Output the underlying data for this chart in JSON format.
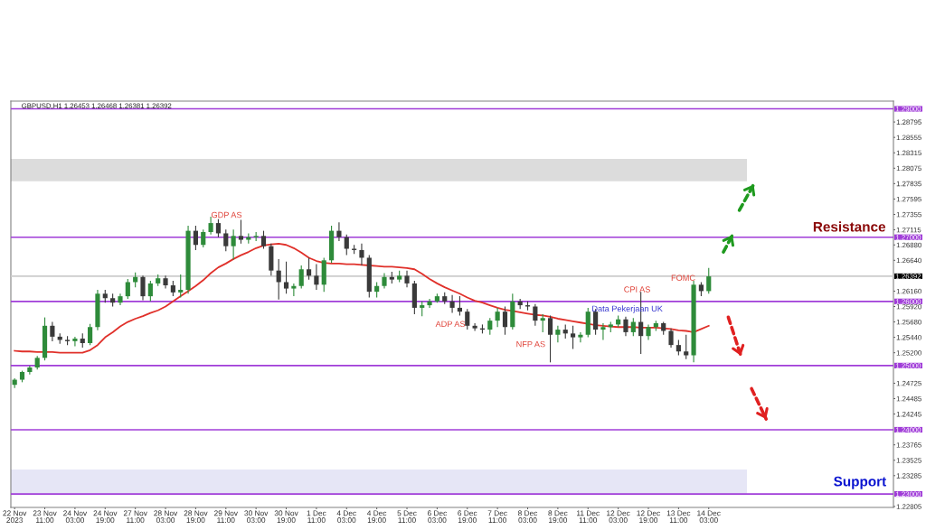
{
  "chart_data": {
    "type": "candlestick",
    "title": "GBPUSD,H1 1.26453 1.26468 1.26381 1.26392",
    "categories": [
      "22 Nov 2023",
      null,
      null,
      null,
      "23 Nov 11:00",
      null,
      null,
      null,
      "24 Nov 03:00",
      null,
      null,
      null,
      "24 Nov 19:00",
      null,
      null,
      null,
      "27 Nov 11:00",
      null,
      null,
      null,
      "28 Nov 03:00",
      null,
      null,
      null,
      "28 Nov 19:00",
      null,
      null,
      null,
      "29 Nov 11:00",
      null,
      null,
      null,
      "30 Nov 03:00",
      null,
      null,
      null,
      "30 Nov 19:00",
      null,
      null,
      null,
      "1 Dec 11:00",
      null,
      null,
      null,
      "4 Dec 03:00",
      null,
      null,
      null,
      "4 Dec 19:00",
      null,
      null,
      null,
      "5 Dec 11:00",
      null,
      null,
      null,
      "6 Dec 03:00",
      null,
      null,
      null,
      "6 Dec 19:00",
      null,
      null,
      null,
      "7 Dec 11:00",
      null,
      null,
      null,
      "8 Dec 03:00",
      null,
      null,
      null,
      "8 Dec 19:00",
      null,
      null,
      null,
      "11 Dec 11:00",
      null,
      null,
      null,
      "12 Dec 03:00",
      null,
      null,
      null,
      "12 Dec 19:00",
      null,
      null,
      null,
      "13 Dec 11:00",
      null,
      null,
      null,
      "14 Dec 03:00"
    ],
    "ohlc": [
      [
        1.247,
        1.248,
        1.2465,
        1.2478
      ],
      [
        1.2478,
        1.2492,
        1.2474,
        1.249
      ],
      [
        1.249,
        1.25,
        1.2486,
        1.2497
      ],
      [
        1.2497,
        1.2515,
        1.2494,
        1.2512
      ],
      [
        1.2512,
        1.2575,
        1.2508,
        1.2562
      ],
      [
        1.2562,
        1.2568,
        1.2538,
        1.2545
      ],
      [
        1.2545,
        1.255,
        1.2534,
        1.254
      ],
      [
        1.254,
        1.2546,
        1.2532,
        1.2538
      ],
      [
        1.2538,
        1.2545,
        1.253,
        1.2542
      ],
      [
        1.2542,
        1.255,
        1.2528,
        1.2535
      ],
      [
        1.2535,
        1.2565,
        1.2532,
        1.256
      ],
      [
        1.256,
        1.2618,
        1.2555,
        1.2612
      ],
      [
        1.2612,
        1.2618,
        1.2598,
        1.2605
      ],
      [
        1.2605,
        1.2612,
        1.2592,
        1.2598
      ],
      [
        1.2598,
        1.2612,
        1.2594,
        1.2608
      ],
      [
        1.2608,
        1.2635,
        1.2604,
        1.263
      ],
      [
        1.263,
        1.2645,
        1.2622,
        1.2638
      ],
      [
        1.2638,
        1.264,
        1.2602,
        1.2608
      ],
      [
        1.2608,
        1.2632,
        1.26,
        1.2628
      ],
      [
        1.2628,
        1.2642,
        1.2624,
        1.2636
      ],
      [
        1.2636,
        1.264,
        1.262,
        1.2625
      ],
      [
        1.2625,
        1.2632,
        1.2608,
        1.2614
      ],
      [
        1.2614,
        1.2642,
        1.2606,
        1.2618
      ],
      [
        1.2618,
        1.2718,
        1.2612,
        1.271
      ],
      [
        1.271,
        1.2718,
        1.268,
        1.2688
      ],
      [
        1.2688,
        1.2712,
        1.2684,
        1.2708
      ],
      [
        1.2708,
        1.2732,
        1.2704,
        1.2722
      ],
      [
        1.2722,
        1.2728,
        1.27,
        1.2706
      ],
      [
        1.2706,
        1.2712,
        1.2678,
        1.2686
      ],
      [
        1.2686,
        1.2712,
        1.2665,
        1.2702
      ],
      [
        1.2702,
        1.2727,
        1.269,
        1.2696
      ],
      [
        1.2696,
        1.2706,
        1.269,
        1.27
      ],
      [
        1.27,
        1.2708,
        1.2694,
        1.2702
      ],
      [
        1.2702,
        1.271,
        1.2682,
        1.2686
      ],
      [
        1.2686,
        1.269,
        1.264,
        1.2648
      ],
      [
        1.2648,
        1.2666,
        1.2603,
        1.263
      ],
      [
        1.263,
        1.2662,
        1.2612,
        1.262
      ],
      [
        1.262,
        1.2628,
        1.2608,
        1.2624
      ],
      [
        1.2624,
        1.2656,
        1.262,
        1.265
      ],
      [
        1.265,
        1.2668,
        1.2634,
        1.264
      ],
      [
        1.264,
        1.2658,
        1.2618,
        1.2626
      ],
      [
        1.2626,
        1.2668,
        1.2615,
        1.2664
      ],
      [
        1.2664,
        1.2718,
        1.266,
        1.271
      ],
      [
        1.271,
        1.2723,
        1.2694,
        1.27
      ],
      [
        1.27,
        1.2704,
        1.2672,
        1.2682
      ],
      [
        1.2682,
        1.2688,
        1.2674,
        1.268
      ],
      [
        1.268,
        1.269,
        1.2656,
        1.2668
      ],
      [
        1.2668,
        1.2672,
        1.2606,
        1.2615
      ],
      [
        1.2615,
        1.263,
        1.2606,
        1.2624
      ],
      [
        1.2624,
        1.2644,
        1.262,
        1.2638
      ],
      [
        1.2638,
        1.2646,
        1.2628,
        1.2634
      ],
      [
        1.2634,
        1.2648,
        1.263,
        1.264
      ],
      [
        1.264,
        1.2648,
        1.2622,
        1.2628
      ],
      [
        1.2628,
        1.2632,
        1.258,
        1.259
      ],
      [
        1.259,
        1.26,
        1.2577,
        1.2594
      ],
      [
        1.2594,
        1.2604,
        1.259,
        1.26
      ],
      [
        1.26,
        1.2612,
        1.2598,
        1.2608
      ],
      [
        1.2608,
        1.2614,
        1.2596,
        1.26
      ],
      [
        1.26,
        1.261,
        1.2582,
        1.259
      ],
      [
        1.259,
        1.2608,
        1.2578,
        1.2584
      ],
      [
        1.2584,
        1.2588,
        1.2556,
        1.2562
      ],
      [
        1.2562,
        1.2566,
        1.2554,
        1.2558
      ],
      [
        1.2558,
        1.2564,
        1.255,
        1.2556
      ],
      [
        1.2556,
        1.2574,
        1.2548,
        1.257
      ],
      [
        1.257,
        1.259,
        1.256,
        1.2584
      ],
      [
        1.2584,
        1.2592,
        1.2548,
        1.256
      ],
      [
        1.256,
        1.2612,
        1.2556,
        1.26
      ],
      [
        1.26,
        1.2604,
        1.2588,
        1.2594
      ],
      [
        1.2594,
        1.26,
        1.2586,
        1.2592
      ],
      [
        1.2592,
        1.2596,
        1.2562,
        1.257
      ],
      [
        1.257,
        1.258,
        1.2552,
        1.2574
      ],
      [
        1.2574,
        1.2578,
        1.2505,
        1.2548
      ],
      [
        1.2548,
        1.2562,
        1.2536,
        1.2556
      ],
      [
        1.2556,
        1.2564,
        1.2542,
        1.255
      ],
      [
        1.255,
        1.2562,
        1.2526,
        1.2544
      ],
      [
        1.2544,
        1.2552,
        1.2536,
        1.2548
      ],
      [
        1.2548,
        1.259,
        1.2544,
        1.2584
      ],
      [
        1.2584,
        1.2588,
        1.2548,
        1.2556
      ],
      [
        1.2556,
        1.2566,
        1.254,
        1.256
      ],
      [
        1.256,
        1.2568,
        1.2552,
        1.2564
      ],
      [
        1.2564,
        1.2578,
        1.256,
        1.2572
      ],
      [
        1.2572,
        1.2576,
        1.2546,
        1.2552
      ],
      [
        1.2552,
        1.2574,
        1.2546,
        1.2568
      ],
      [
        1.2568,
        1.2615,
        1.2518,
        1.2546
      ],
      [
        1.2546,
        1.2564,
        1.254,
        1.256
      ],
      [
        1.256,
        1.257,
        1.2554,
        1.2566
      ],
      [
        1.2566,
        1.2568,
        1.2548,
        1.2554
      ],
      [
        1.2554,
        1.2558,
        1.2528,
        1.2532
      ],
      [
        1.2532,
        1.254,
        1.2516,
        1.2522
      ],
      [
        1.2522,
        1.2548,
        1.251,
        1.2516
      ],
      [
        1.2516,
        1.2632,
        1.2505,
        1.2626
      ],
      [
        1.2626,
        1.263,
        1.2608,
        1.2616
      ],
      [
        1.2616,
        1.2652,
        1.2612,
        1.2639
      ]
    ],
    "colors": [
      "#2e8b3a",
      "#2e8b3a",
      "#2e8b3a",
      "#2e8b3a",
      "#2e8b3a",
      "#3a3a3a",
      "#3a3a3a",
      "#3a3a3a",
      "#2e8b3a",
      "#3a3a3a",
      "#2e8b3a",
      "#2e8b3a",
      "#3a3a3a",
      "#3a3a3a",
      "#2e8b3a",
      "#2e8b3a",
      "#2e8b3a",
      "#3a3a3a",
      "#2e8b3a",
      "#2e8b3a",
      "#3a3a3a",
      "#3a3a3a",
      "#2e8b3a",
      "#2e8b3a",
      "#3a3a3a",
      "#2e8b3a",
      "#2e8b3a",
      "#3a3a3a",
      "#3a3a3a",
      "#2e8b3a",
      "#3a3a3a",
      "#2e8b3a",
      "#2e8b3a",
      "#3a3a3a",
      "#3a3a3a",
      "#3a3a3a",
      "#3a3a3a",
      "#2e8b3a",
      "#2e8b3a",
      "#3a3a3a",
      "#3a3a3a",
      "#2e8b3a",
      "#2e8b3a",
      "#3a3a3a",
      "#3a3a3a",
      "#3a3a3a",
      "#3a3a3a",
      "#3a3a3a",
      "#2e8b3a",
      "#2e8b3a",
      "#3a3a3a",
      "#2e8b3a",
      "#3a3a3a",
      "#3a3a3a",
      "#2e8b3a",
      "#2e8b3a",
      "#2e8b3a",
      "#3a3a3a",
      "#3a3a3a",
      "#3a3a3a",
      "#3a3a3a",
      "#3a3a3a",
      "#3a3a3a",
      "#2e8b3a",
      "#2e8b3a",
      "#3a3a3a",
      "#2e8b3a",
      "#3a3a3a",
      "#3a3a3a",
      "#3a3a3a",
      "#2e8b3a",
      "#3a3a3a",
      "#2e8b3a",
      "#3a3a3a",
      "#3a3a3a",
      "#2e8b3a",
      "#2e8b3a",
      "#3a3a3a",
      "#2e8b3a",
      "#2e8b3a",
      "#2e8b3a",
      "#3a3a3a",
      "#2e8b3a",
      "#3a3a3a",
      "#2e8b3a",
      "#2e8b3a",
      "#3a3a3a",
      "#3a3a3a",
      "#3a3a3a",
      "#3a3a3a",
      "#2e8b3a",
      "#3a3a3a",
      "#2e8b3a"
    ],
    "series": [
      {
        "type": "line",
        "color": "#e0302a",
        "values": [
          1.2523,
          1.2522,
          1.2522,
          1.2521,
          1.2521,
          1.2521,
          1.252,
          1.252,
          1.252,
          1.252,
          1.2524,
          1.2532,
          1.2544,
          1.2552,
          1.2561,
          1.2568,
          1.2573,
          1.2577,
          1.2582,
          1.2586,
          1.2592,
          1.26,
          1.2608,
          1.2616,
          1.2624,
          1.2633,
          1.2644,
          1.2653,
          1.2659,
          1.2666,
          1.2672,
          1.2677,
          1.2683,
          1.2687,
          1.2689,
          1.269,
          1.2688,
          1.2683,
          1.2676,
          1.2668,
          1.2663,
          1.266,
          1.2659,
          1.2659,
          1.2658,
          1.2658,
          1.2657,
          1.2656,
          1.2655,
          1.2654,
          1.2654,
          1.2653,
          1.2652,
          1.265,
          1.2643,
          1.2635,
          1.2628,
          1.2622,
          1.2617,
          1.2612,
          1.2606,
          1.2601,
          1.2598,
          1.2594,
          1.259,
          1.2587,
          1.2585,
          1.2583,
          1.2581,
          1.2579,
          1.2578,
          1.2576,
          1.2573,
          1.2571,
          1.2569,
          1.2567,
          1.2565,
          1.2563,
          1.2562,
          1.2561,
          1.256,
          1.256,
          1.256,
          1.2559,
          1.2559,
          1.2559,
          1.2558,
          1.2557,
          1.2555,
          1.2554,
          1.2552,
          1.2557,
          1.2562
        ]
      }
    ],
    "ylim": [
      1.2279,
      1.2912
    ],
    "yticks": [
      {
        "value": 1.28795,
        "label": "1.28795"
      },
      {
        "value": 1.28555,
        "label": "1.28555"
      },
      {
        "value": 1.28315,
        "label": "1.28315"
      },
      {
        "value": 1.28075,
        "label": "1.28075"
      },
      {
        "value": 1.27835,
        "label": "1.27835"
      },
      {
        "value": 1.27595,
        "label": "1.27595"
      },
      {
        "value": 1.27355,
        "label": "1.27355"
      },
      {
        "value": 1.27115,
        "label": "1.27115"
      },
      {
        "value": 1.2688,
        "label": "1.26880"
      },
      {
        "value": 1.2664,
        "label": "1.26640"
      },
      {
        "value": 1.2616,
        "label": "1.26160"
      },
      {
        "value": 1.2592,
        "label": "1.25920"
      },
      {
        "value": 1.2568,
        "label": "1.25680"
      },
      {
        "value": 1.2544,
        "label": "1.25440"
      },
      {
        "value": 1.252,
        "label": "1.25200"
      },
      {
        "value": 1.24725,
        "label": "1.24725"
      },
      {
        "value": 1.24485,
        "label": "1.24485"
      },
      {
        "value": 1.24245,
        "label": "1.24245"
      },
      {
        "value": 1.23765,
        "label": "1.23765"
      },
      {
        "value": 1.23525,
        "label": "1.23525"
      },
      {
        "value": 1.23285,
        "label": "1.23285"
      },
      {
        "value": 1.22805,
        "label": "1.22805"
      }
    ],
    "bands": [
      {
        "axis": "y",
        "from": 1.2787,
        "to": 1.2822,
        "color": "#dcdcdc"
      },
      {
        "axis": "y",
        "from": 1.23,
        "to": 1.2338,
        "color": "#e6e6f6"
      }
    ],
    "ref_lines": [
      {
        "axis": "y",
        "value": 1.29,
        "label": "1.29000",
        "color": "#a03cd8",
        "line_style": "solid"
      },
      {
        "axis": "y",
        "value": 1.27,
        "label": "1.27000",
        "color": "#a03cd8",
        "line_style": "solid"
      },
      {
        "axis": "y",
        "value": 1.26,
        "label": "1.26000",
        "color": "#a03cd8",
        "line_style": "solid"
      },
      {
        "axis": "y",
        "value": 1.25,
        "label": "1.25000",
        "color": "#a03cd8",
        "line_style": "solid"
      },
      {
        "axis": "y",
        "value": 1.24,
        "label": "1.24000",
        "color": "#a03cd8",
        "line_style": "solid"
      },
      {
        "axis": "y",
        "value": 1.23,
        "label": "1.23000",
        "color": "#a03cd8",
        "line_style": "solid"
      },
      {
        "axis": "y",
        "value": 1.26392,
        "label": "1.26392",
        "color": "#cccccc",
        "line_style": "solid"
      }
    ],
    "annotations": [
      "GDP AS",
      "ADP AS",
      "NFP AS",
      "Data Pekerjaan UK",
      "CPI AS",
      "FOMC",
      "Resistance",
      "Support"
    ]
  }
}
